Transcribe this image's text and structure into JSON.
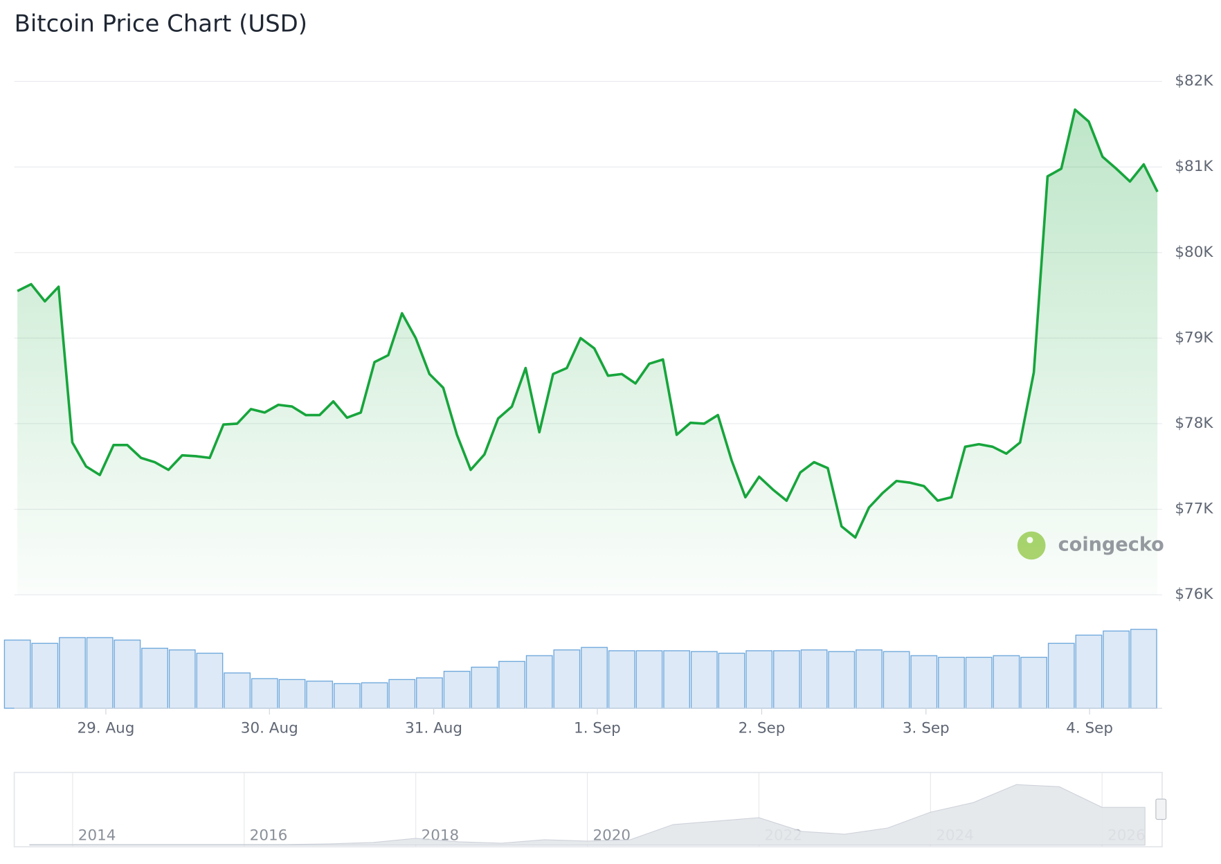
{
  "chart_data": {
    "type": "line",
    "title": "Bitcoin Price Chart (USD)",
    "series": [
      {
        "color": "#17a53c",
        "values": [
          79550,
          79630,
          79430,
          79600,
          77780,
          77500,
          77400,
          77750,
          77750,
          77600,
          77550,
          77460,
          77630,
          77620,
          77600,
          77990,
          78000,
          78170,
          78130,
          78220,
          78200,
          78100,
          78100,
          78260,
          78070,
          78130,
          78720,
          78800,
          79290,
          79000,
          78580,
          78420,
          77870,
          77460,
          77640,
          78060,
          78200,
          78650,
          77900,
          78580,
          78650,
          79000,
          78880,
          78560,
          78580,
          78470,
          78700,
          78750,
          77870,
          78010,
          78000,
          78100,
          77570,
          77140,
          77380,
          77230,
          77100,
          77430,
          77550,
          77480,
          76800,
          76670,
          77020,
          77190,
          77330,
          77310,
          77270,
          77100,
          77140,
          77730,
          77760,
          77730,
          77650,
          77780,
          78600,
          80890,
          80980,
          81670,
          81530,
          81120,
          80980,
          80830,
          81030,
          80710
        ]
      }
    ],
    "xlim": [
      0,
      83
    ],
    "xticks": [
      {
        "value": 6.44,
        "label": "29. Aug"
      },
      {
        "value": 18.35,
        "label": "30. Aug"
      },
      {
        "value": 30.31,
        "label": "31. Aug"
      },
      {
        "value": 42.22,
        "label": "1. Sep"
      },
      {
        "value": 54.19,
        "label": "2. Sep"
      },
      {
        "value": 66.15,
        "label": "3. Sep"
      },
      {
        "value": 78.06,
        "label": "4. Sep"
      }
    ],
    "ylim": [
      76000,
      82000
    ],
    "yticks": [
      {
        "value": 76000,
        "label": "$76K"
      },
      {
        "value": 77000,
        "label": "$77K"
      },
      {
        "value": 78000,
        "label": "$78K"
      },
      {
        "value": 79000,
        "label": "$79K"
      },
      {
        "value": 80000,
        "label": "$80K"
      },
      {
        "value": 81000,
        "label": "$81K"
      },
      {
        "value": 82000,
        "label": "$82K"
      }
    ],
    "grid": true,
    "area": true,
    "volume": {
      "type": "bar",
      "color": "#6fa8dc",
      "ylim": [
        0,
        100
      ],
      "values": [
        83,
        79,
        86,
        86,
        83,
        73,
        71,
        67,
        43,
        36,
        35,
        33,
        30,
        31,
        35,
        37,
        45,
        50,
        57,
        64,
        71,
        74,
        70,
        70,
        70,
        69,
        67,
        70,
        70,
        71,
        69,
        71,
        69,
        64,
        62,
        62,
        64,
        62,
        79,
        89,
        94,
        96
      ]
    },
    "navigator": {
      "type": "area",
      "color": "#c9ced6",
      "x": [
        2013.5,
        2014,
        2014.5,
        2015,
        2015.5,
        2016,
        2016.5,
        2017,
        2017.5,
        2018,
        2018.5,
        2019,
        2019.5,
        2020,
        2020.5,
        2021,
        2021.5,
        2022,
        2022.5,
        2023,
        2023.5,
        2024,
        2024.5,
        2025,
        2025.5,
        2026,
        2026.5
      ],
      "values": [
        1,
        1,
        1,
        1,
        1,
        1,
        1,
        2,
        4,
        10,
        5,
        3,
        8,
        6,
        8,
        30,
        35,
        40,
        20,
        16,
        25,
        48,
        62,
        88,
        85,
        55,
        55
      ],
      "xlim": [
        2013.32,
        2026.7
      ],
      "xticks": [
        2014,
        2016,
        2018,
        2020,
        2022,
        2024,
        2026
      ],
      "ylim": [
        0,
        100
      ]
    },
    "watermark": "coingecko"
  }
}
